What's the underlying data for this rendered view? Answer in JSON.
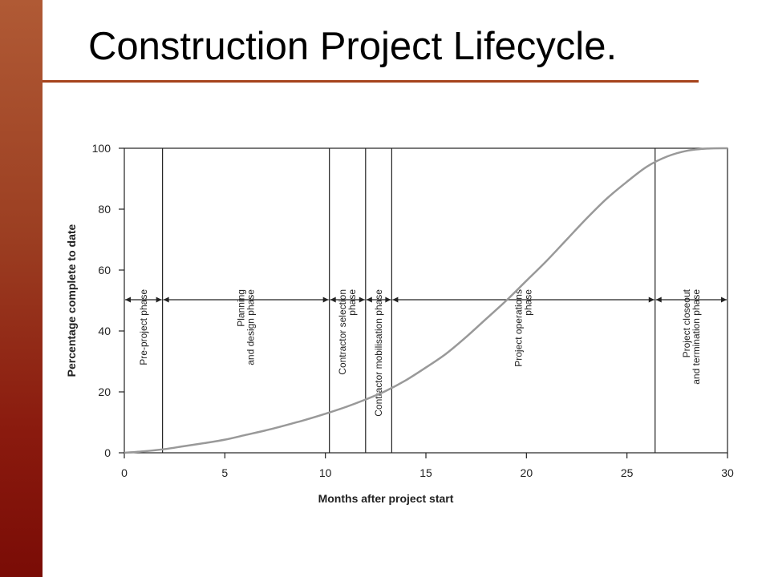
{
  "slide": {
    "title": "Construction Project Lifecycle.",
    "accent_color": "#a5431c"
  },
  "chart_data": {
    "type": "line",
    "xlabel": "Months after project start",
    "ylabel": "Percentage complete to date",
    "xlim": [
      0,
      30
    ],
    "ylim": [
      0,
      100
    ],
    "x_ticks": [
      0,
      5,
      10,
      15,
      20,
      25,
      30
    ],
    "y_ticks": [
      0,
      20,
      40,
      60,
      80,
      100
    ],
    "grid": false,
    "series": [
      {
        "color": "#999999",
        "x": [
          0,
          1,
          2,
          3,
          4,
          5,
          6,
          7,
          8,
          9,
          10,
          11,
          12,
          13,
          14,
          15,
          16,
          17,
          18,
          19,
          20,
          21,
          22,
          23,
          24,
          25,
          26,
          27,
          28,
          29,
          30
        ],
        "y": [
          0,
          0.5,
          1.2,
          2.2,
          3.2,
          4.3,
          5.8,
          7.3,
          9,
          10.8,
          12.8,
          15,
          17.5,
          20.3,
          23.8,
          28,
          32.5,
          38,
          44,
          50,
          56.5,
          63,
          70,
          77,
          83.5,
          89,
          94,
          97.3,
          99.2,
          99.9,
          100
        ]
      }
    ],
    "phase_boundaries": [
      0,
      1.9,
      10.2,
      12,
      13.3,
      26.4,
      30
    ],
    "phases": [
      {
        "label": "Pre-project phase"
      },
      {
        "label": "Planning and design phase"
      },
      {
        "label": "Contractor selection phase"
      },
      {
        "label": "Contractor mobilisation phase"
      },
      {
        "label": "Project operations phase"
      },
      {
        "label": "Project closeout and termination phase"
      }
    ],
    "arrow_level": 50
  }
}
